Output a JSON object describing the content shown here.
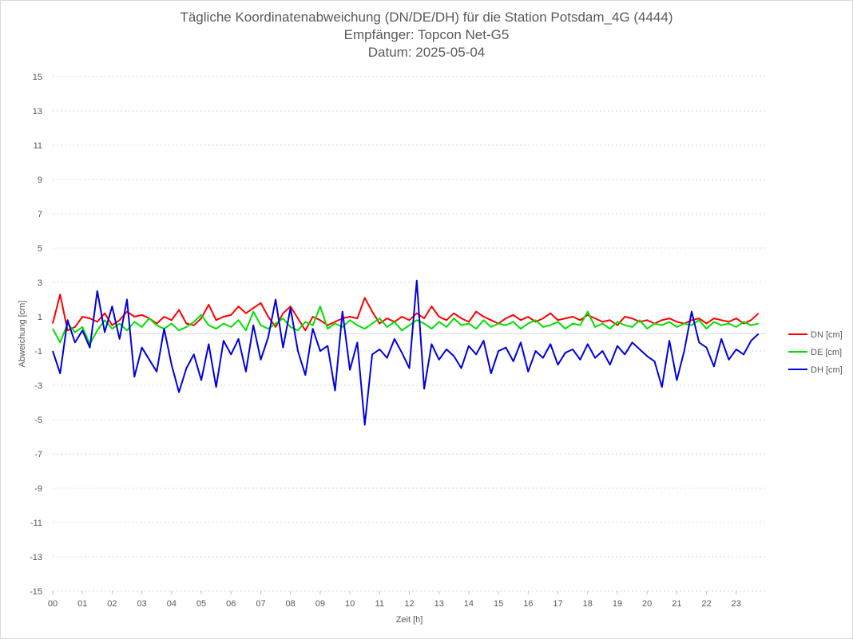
{
  "chart_data": {
    "type": "line",
    "title": "Tägliche Koordinatenabweichung (DN/DE/DH) für die Station Potsdam_4G (4444)",
    "subtitle_lines": [
      "Empfänger: Topcon Net-G5",
      "Datum: 2025-05-04"
    ],
    "xlabel": "Zeit [h]",
    "ylabel": "Abweichung [cm]",
    "xlim": [
      0,
      24
    ],
    "ylim": [
      -15,
      15
    ],
    "x_ticks": [
      "00",
      "01",
      "02",
      "03",
      "04",
      "05",
      "06",
      "07",
      "08",
      "09",
      "10",
      "11",
      "12",
      "13",
      "14",
      "15",
      "16",
      "17",
      "18",
      "19",
      "20",
      "21",
      "22",
      "23"
    ],
    "y_ticks": [
      15,
      13,
      11,
      9,
      7,
      5,
      3,
      1,
      -1,
      -3,
      -5,
      -7,
      -9,
      -11,
      -13,
      -15
    ],
    "grid": "horizontal-dotted",
    "legend_position": "right",
    "series": [
      {
        "name": "DN [cm]",
        "color": "#ff0000",
        "x": [
          0,
          0.25,
          0.5,
          0.75,
          1,
          1.25,
          1.5,
          1.75,
          2,
          2.25,
          2.5,
          2.75,
          3,
          3.25,
          3.5,
          3.75,
          4,
          4.25,
          4.5,
          4.75,
          5,
          5.25,
          5.5,
          5.75,
          6,
          6.25,
          6.5,
          6.75,
          7,
          7.25,
          7.5,
          7.75,
          8,
          8.25,
          8.5,
          8.75,
          9,
          9.25,
          9.5,
          9.75,
          10,
          10.25,
          10.5,
          10.75,
          11,
          11.25,
          11.5,
          11.75,
          12,
          12.25,
          12.5,
          12.75,
          13,
          13.25,
          13.5,
          13.75,
          14,
          14.25,
          14.5,
          14.75,
          15,
          15.25,
          15.5,
          15.75,
          16,
          16.25,
          16.5,
          16.75,
          17,
          17.25,
          17.5,
          17.75,
          18,
          18.25,
          18.5,
          18.75,
          19,
          19.25,
          19.5,
          19.75,
          20,
          20.25,
          20.5,
          20.75,
          21,
          21.25,
          21.5,
          21.75,
          22,
          22.25,
          22.5,
          22.75,
          23,
          23.25,
          23.5,
          23.75
        ],
        "y": [
          0.6,
          2.3,
          0.2,
          0.4,
          1.0,
          0.9,
          0.7,
          1.2,
          0.5,
          0.8,
          1.3,
          1.0,
          1.1,
          0.9,
          0.6,
          1.0,
          0.8,
          1.4,
          0.6,
          0.5,
          0.9,
          1.7,
          0.8,
          1.0,
          1.1,
          1.6,
          1.2,
          1.5,
          1.8,
          1.0,
          0.4,
          1.2,
          1.6,
          0.9,
          0.2,
          1.0,
          0.8,
          0.5,
          0.7,
          0.9,
          1.0,
          0.9,
          2.1,
          1.3,
          0.6,
          0.9,
          0.7,
          1.0,
          0.8,
          1.2,
          0.9,
          1.6,
          1.0,
          0.8,
          1.2,
          0.9,
          0.7,
          1.3,
          1.0,
          0.8,
          0.6,
          0.9,
          1.1,
          0.8,
          1.0,
          0.7,
          0.9,
          1.2,
          0.8,
          0.9,
          1.0,
          0.8,
          1.1,
          0.9,
          0.7,
          0.8,
          0.5,
          1.0,
          0.9,
          0.7,
          0.8,
          0.6,
          0.8,
          0.9,
          0.7,
          0.6,
          0.8,
          0.9,
          0.6,
          0.9,
          0.8,
          0.7,
          0.9,
          0.6,
          0.8,
          1.2
        ]
      },
      {
        "name": "DE [cm]",
        "color": "#00e000",
        "x": [
          0,
          0.25,
          0.5,
          0.75,
          1,
          1.25,
          1.5,
          1.75,
          2,
          2.25,
          2.5,
          2.75,
          3,
          3.25,
          3.5,
          3.75,
          4,
          4.25,
          4.5,
          4.75,
          5,
          5.25,
          5.5,
          5.75,
          6,
          6.25,
          6.5,
          6.75,
          7,
          7.25,
          7.5,
          7.75,
          8,
          8.25,
          8.5,
          8.75,
          9,
          9.25,
          9.5,
          9.75,
          10,
          10.25,
          10.5,
          10.75,
          11,
          11.25,
          11.5,
          11.75,
          12,
          12.25,
          12.5,
          12.75,
          13,
          13.25,
          13.5,
          13.75,
          14,
          14.25,
          14.5,
          14.75,
          15,
          15.25,
          15.5,
          15.75,
          16,
          16.25,
          16.5,
          16.75,
          17,
          17.25,
          17.5,
          17.75,
          18,
          18.25,
          18.5,
          18.75,
          19,
          19.25,
          19.5,
          19.75,
          20,
          20.25,
          20.5,
          20.75,
          21,
          21.25,
          21.5,
          21.75,
          22,
          22.25,
          22.5,
          22.75,
          23,
          23.25,
          23.5,
          23.75
        ],
        "y": [
          0.3,
          -0.5,
          0.6,
          0.1,
          0.4,
          -0.6,
          0.2,
          0.8,
          0.3,
          0.6,
          0.2,
          0.7,
          0.4,
          0.9,
          0.5,
          0.3,
          0.6,
          0.2,
          0.4,
          0.7,
          1.1,
          0.5,
          0.3,
          0.6,
          0.4,
          0.8,
          0.2,
          1.3,
          0.5,
          0.3,
          0.6,
          0.9,
          0.4,
          0.2,
          0.7,
          0.5,
          1.6,
          0.3,
          0.6,
          0.4,
          0.8,
          0.5,
          0.3,
          0.6,
          0.9,
          0.4,
          0.7,
          0.2,
          0.5,
          0.8,
          0.6,
          0.3,
          0.7,
          0.4,
          0.9,
          0.5,
          0.6,
          0.3,
          0.8,
          0.4,
          0.6,
          0.5,
          0.7,
          0.3,
          0.6,
          0.8,
          0.4,
          0.5,
          0.7,
          0.3,
          0.6,
          0.5,
          1.3,
          0.4,
          0.6,
          0.3,
          0.7,
          0.5,
          0.4,
          0.8,
          0.3,
          0.6,
          0.5,
          0.7,
          0.4,
          0.6,
          0.5,
          0.8,
          0.3,
          0.7,
          0.5,
          0.6,
          0.4,
          0.7,
          0.5,
          0.6
        ]
      },
      {
        "name": "DH [cm]",
        "color": "#0000e0",
        "x": [
          0,
          0.25,
          0.5,
          0.75,
          1,
          1.25,
          1.5,
          1.75,
          2,
          2.25,
          2.5,
          2.75,
          3,
          3.25,
          3.5,
          3.75,
          4,
          4.25,
          4.5,
          4.75,
          5,
          5.25,
          5.5,
          5.75,
          6,
          6.25,
          6.5,
          6.75,
          7,
          7.25,
          7.5,
          7.75,
          8,
          8.25,
          8.5,
          8.75,
          9,
          9.25,
          9.5,
          9.75,
          10,
          10.25,
          10.5,
          10.75,
          11,
          11.25,
          11.5,
          11.75,
          12,
          12.25,
          12.5,
          12.75,
          13,
          13.25,
          13.5,
          13.75,
          14,
          14.25,
          14.5,
          14.75,
          15,
          15.25,
          15.5,
          15.75,
          16,
          16.25,
          16.5,
          16.75,
          17,
          17.25,
          17.5,
          17.75,
          18,
          18.25,
          18.5,
          18.75,
          19,
          19.25,
          19.5,
          19.75,
          20,
          20.25,
          20.5,
          20.75,
          21,
          21.25,
          21.5,
          21.75,
          22,
          22.25,
          22.5,
          22.75,
          23,
          23.25,
          23.5,
          23.75
        ],
        "y": [
          -1.0,
          -2.3,
          0.8,
          -0.5,
          0.2,
          -0.8,
          2.5,
          0.1,
          1.6,
          -0.3,
          2.0,
          -2.5,
          -0.8,
          -1.5,
          -2.2,
          0.3,
          -1.8,
          -3.4,
          -2.0,
          -1.2,
          -2.7,
          -0.6,
          -3.1,
          -0.4,
          -1.2,
          -0.3,
          -2.2,
          0.5,
          -1.5,
          -0.2,
          2.0,
          -0.8,
          1.5,
          -1.0,
          -2.4,
          0.3,
          -1.0,
          -0.7,
          -3.3,
          1.3,
          -2.1,
          -0.5,
          -5.3,
          -1.2,
          -0.9,
          -1.4,
          -0.3,
          -1.1,
          -2.0,
          3.1,
          -3.2,
          -0.6,
          -1.5,
          -0.9,
          -1.3,
          -2.0,
          -0.7,
          -1.2,
          -0.4,
          -2.3,
          -1.0,
          -0.8,
          -1.6,
          -0.5,
          -2.2,
          -1.0,
          -1.4,
          -0.6,
          -1.8,
          -1.1,
          -0.9,
          -1.5,
          -0.6,
          -1.4,
          -1.0,
          -1.8,
          -0.7,
          -1.2,
          -0.5,
          -0.9,
          -1.3,
          -1.6,
          -3.1,
          -0.4,
          -2.7,
          -1.0,
          1.3,
          -0.5,
          -0.8,
          -1.9,
          -0.3,
          -1.5,
          -0.9,
          -1.2,
          -0.4,
          0.0
        ]
      }
    ]
  }
}
